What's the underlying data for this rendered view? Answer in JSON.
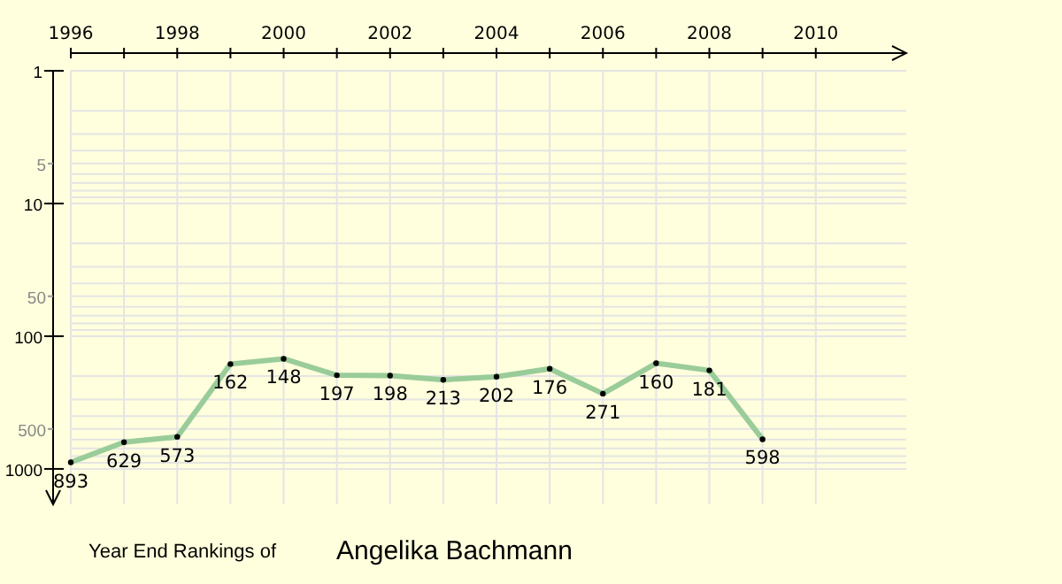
{
  "chart_data": {
    "type": "line",
    "title": "Year End Rankings of",
    "subtitle": "Angelika Bachmann",
    "x": [
      1996,
      1997,
      1998,
      1999,
      2000,
      2001,
      2002,
      2003,
      2004,
      2005,
      2006,
      2007,
      2008,
      2009
    ],
    "series": [
      {
        "color": "#99cc99",
        "values": [
          893,
          629,
          573,
          162,
          148,
          197,
          198,
          213,
          202,
          176,
          271,
          160,
          181,
          598
        ]
      }
    ],
    "xlim": [
      1996,
      2011.7
    ],
    "xticks": [
      1996,
      {
        "value": 1997,
        "label": null
      },
      1998,
      {
        "value": 1999,
        "label": null
      },
      2000,
      {
        "value": 2001,
        "label": null
      },
      2002,
      {
        "value": 2003,
        "label": null
      },
      2004,
      {
        "value": 2005,
        "label": null
      },
      2006,
      {
        "value": 2007,
        "label": null
      },
      2008,
      {
        "value": 2009,
        "label": null
      },
      2010
    ],
    "ylim": [
      1850,
      1
    ],
    "yticks": [
      1,
      {
        "value": 2,
        "label": null
      },
      {
        "value": 3,
        "label": null
      },
      {
        "value": 4,
        "label": null
      },
      5,
      {
        "value": 6,
        "label": null
      },
      {
        "value": 7,
        "label": null
      },
      {
        "value": 8,
        "label": null
      },
      {
        "value": 9,
        "label": null
      },
      10,
      {
        "value": 20,
        "label": null
      },
      {
        "value": 30,
        "label": null
      },
      {
        "value": 40,
        "label": null
      },
      50,
      {
        "value": 60,
        "label": null
      },
      {
        "value": 70,
        "label": null
      },
      {
        "value": 80,
        "label": null
      },
      {
        "value": 90,
        "label": null
      },
      100,
      {
        "value": 200,
        "label": null
      },
      {
        "value": 300,
        "label": null
      },
      {
        "value": 400,
        "label": null
      },
      500,
      {
        "value": 600,
        "label": null
      },
      {
        "value": 700,
        "label": null
      },
      {
        "value": 800,
        "label": null
      },
      {
        "value": 900,
        "label": null
      },
      1000
    ],
    "log": "y",
    "grid": true,
    "marker": "circle",
    "line_style": "solid",
    "data_labels": true
  }
}
